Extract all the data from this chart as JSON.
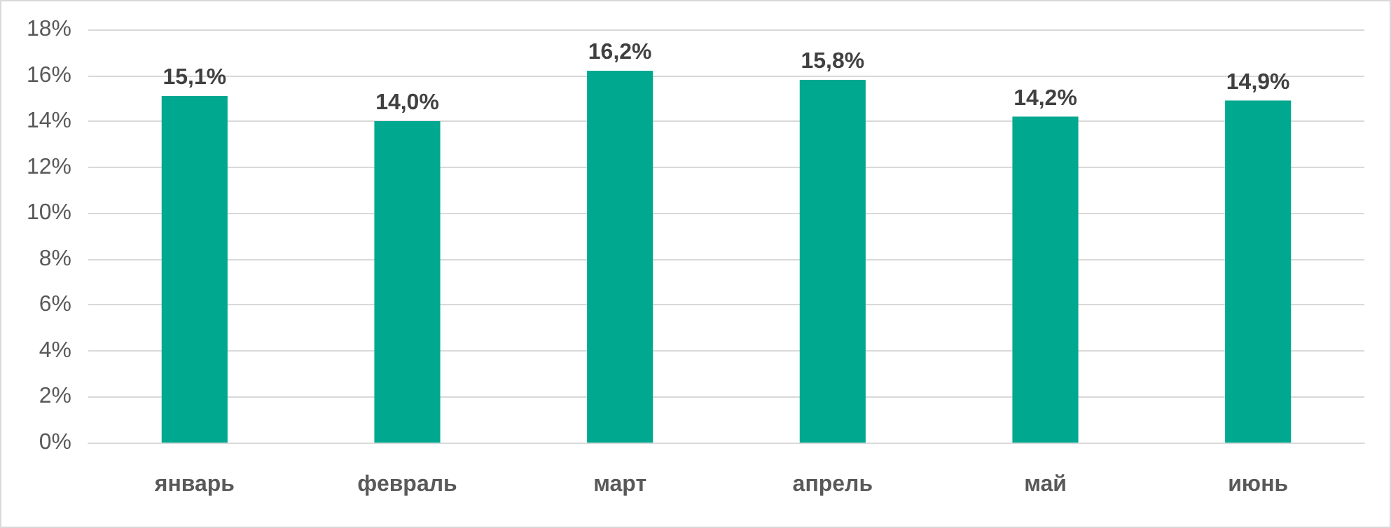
{
  "chart_data": {
    "type": "bar",
    "categories": [
      "январь",
      "февраль",
      "март",
      "апрель",
      "май",
      "июнь"
    ],
    "values": [
      15.1,
      14.0,
      16.2,
      15.8,
      14.2,
      14.9
    ],
    "color": "#00a88f",
    "value_labels": [
      "15,1%",
      "14,0%",
      "16,2%",
      "15,8%",
      "14,2%",
      "14,9%"
    ],
    "ylim": [
      0,
      18
    ],
    "yticks": [
      {
        "value": 0,
        "label": "0%"
      },
      {
        "value": 2,
        "label": "2%"
      },
      {
        "value": 4,
        "label": "4%"
      },
      {
        "value": 6,
        "label": "6%"
      },
      {
        "value": 8,
        "label": "8%"
      },
      {
        "value": 10,
        "label": "10%"
      },
      {
        "value": 12,
        "label": "12%"
      },
      {
        "value": 14,
        "label": "14%"
      },
      {
        "value": 16,
        "label": "16%"
      },
      {
        "value": 18,
        "label": "18%"
      }
    ],
    "grid": "y"
  }
}
